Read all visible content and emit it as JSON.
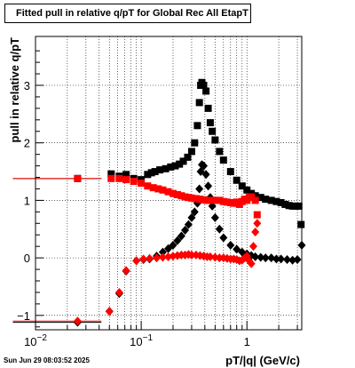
{
  "chart_data": {
    "type": "scatter",
    "title": "Fitted pull in relative q/pT for Global Rec All EtapT",
    "xlabel": "pT/|q| (GeV/c)",
    "ylabel": "pull in relative q/pT",
    "xscale": "log",
    "xlim": [
      0.01,
      3.3
    ],
    "ylim": [
      -1.25,
      3.85
    ],
    "grid": true,
    "x_ticks": [
      {
        "value": 0.01,
        "base": "10",
        "exp": "−2"
      },
      {
        "value": 0.1,
        "base": "10",
        "exp": "−1"
      },
      {
        "value": 1,
        "base": "1",
        "exp": ""
      }
    ],
    "y_ticks": [
      -1,
      0,
      1,
      2,
      3
    ],
    "series": [
      {
        "marker": "square",
        "color": "#000000",
        "points": [
          [
            0.025,
            1.38
          ],
          [
            0.052,
            1.46
          ],
          [
            0.062,
            1.42
          ],
          [
            0.072,
            1.45
          ],
          [
            0.085,
            1.38
          ],
          [
            0.1,
            1.36
          ],
          [
            0.115,
            1.45
          ],
          [
            0.125,
            1.48
          ],
          [
            0.135,
            1.5
          ],
          [
            0.15,
            1.53
          ],
          [
            0.17,
            1.55
          ],
          [
            0.19,
            1.58
          ],
          [
            0.21,
            1.6
          ],
          [
            0.23,
            1.63
          ],
          [
            0.25,
            1.68
          ],
          [
            0.275,
            1.75
          ],
          [
            0.3,
            1.85
          ],
          [
            0.32,
            2.0
          ],
          [
            0.34,
            2.3
          ],
          [
            0.355,
            2.7
          ],
          [
            0.365,
            3.0
          ],
          [
            0.375,
            3.05
          ],
          [
            0.39,
            3.0
          ],
          [
            0.41,
            2.9
          ],
          [
            0.43,
            2.6
          ],
          [
            0.45,
            2.35
          ],
          [
            0.47,
            2.2
          ],
          [
            0.5,
            2.05
          ],
          [
            0.55,
            1.85
          ],
          [
            0.6,
            1.7
          ],
          [
            0.7,
            1.5
          ],
          [
            0.8,
            1.35
          ],
          [
            0.9,
            1.25
          ],
          [
            1.0,
            1.18
          ],
          [
            1.1,
            1.12
          ],
          [
            1.2,
            1.08
          ],
          [
            1.35,
            1.05
          ],
          [
            1.5,
            1.02
          ],
          [
            1.7,
            1.0
          ],
          [
            1.9,
            0.98
          ],
          [
            2.1,
            0.96
          ],
          [
            2.3,
            0.93
          ],
          [
            2.5,
            0.91
          ],
          [
            2.7,
            0.9
          ],
          [
            2.9,
            0.9
          ],
          [
            3.1,
            0.9
          ],
          [
            3.25,
            0.58
          ]
        ]
      },
      {
        "marker": "diamond",
        "color": "#000000",
        "points": [
          [
            0.025,
            -1.12
          ],
          [
            0.05,
            -0.93
          ],
          [
            0.062,
            -0.62
          ],
          [
            0.072,
            -0.23
          ],
          [
            0.09,
            -0.05
          ],
          [
            0.105,
            -0.03
          ],
          [
            0.12,
            -0.02
          ],
          [
            0.14,
            0.03
          ],
          [
            0.16,
            0.1
          ],
          [
            0.18,
            0.16
          ],
          [
            0.2,
            0.22
          ],
          [
            0.22,
            0.3
          ],
          [
            0.24,
            0.38
          ],
          [
            0.26,
            0.48
          ],
          [
            0.28,
            0.58
          ],
          [
            0.3,
            0.7
          ],
          [
            0.32,
            0.8
          ],
          [
            0.34,
            0.95
          ],
          [
            0.355,
            1.2
          ],
          [
            0.365,
            1.5
          ],
          [
            0.375,
            1.62
          ],
          [
            0.39,
            1.6
          ],
          [
            0.41,
            1.45
          ],
          [
            0.43,
            1.25
          ],
          [
            0.45,
            1.05
          ],
          [
            0.47,
            0.9
          ],
          [
            0.5,
            0.7
          ],
          [
            0.55,
            0.5
          ],
          [
            0.6,
            0.35
          ],
          [
            0.7,
            0.22
          ],
          [
            0.8,
            0.15
          ],
          [
            0.9,
            0.1
          ],
          [
            1.0,
            0.07
          ],
          [
            1.1,
            0.04
          ],
          [
            1.2,
            0.02
          ],
          [
            1.35,
            0.01
          ],
          [
            1.5,
            0.0
          ],
          [
            1.7,
            0.0
          ],
          [
            1.9,
            -0.02
          ],
          [
            2.1,
            -0.02
          ],
          [
            2.4,
            -0.03
          ],
          [
            2.7,
            -0.04
          ],
          [
            3.0,
            -0.03
          ],
          [
            3.3,
            0.22
          ]
        ]
      },
      {
        "marker": "square",
        "color": "#ff0000",
        "points": [
          [
            0.025,
            1.38
          ],
          [
            0.052,
            1.38
          ],
          [
            0.062,
            1.38
          ],
          [
            0.072,
            1.36
          ],
          [
            0.085,
            1.33
          ],
          [
            0.1,
            1.3
          ],
          [
            0.115,
            1.25
          ],
          [
            0.13,
            1.22
          ],
          [
            0.145,
            1.2
          ],
          [
            0.16,
            1.18
          ],
          [
            0.18,
            1.15
          ],
          [
            0.2,
            1.12
          ],
          [
            0.22,
            1.1
          ],
          [
            0.24,
            1.08
          ],
          [
            0.26,
            1.06
          ],
          [
            0.28,
            1.05
          ],
          [
            0.3,
            1.04
          ],
          [
            0.33,
            1.03
          ],
          [
            0.36,
            1.02
          ],
          [
            0.39,
            1.01
          ],
          [
            0.42,
            1.0
          ],
          [
            0.45,
            1.0
          ],
          [
            0.5,
            1.0
          ],
          [
            0.55,
            1.0
          ],
          [
            0.6,
            0.98
          ],
          [
            0.65,
            0.97
          ],
          [
            0.7,
            0.96
          ],
          [
            0.75,
            0.95
          ],
          [
            0.8,
            0.97
          ],
          [
            0.85,
            0.93
          ],
          [
            0.9,
            0.98
          ],
          [
            0.95,
            1.02
          ],
          [
            1.0,
            1.0
          ],
          [
            1.05,
            1.05
          ],
          [
            1.1,
            1.06
          ],
          [
            1.2,
            1.0
          ],
          [
            1.25,
            0.75
          ]
        ]
      },
      {
        "marker": "diamond",
        "color": "#ff0000",
        "points": [
          [
            0.025,
            -1.1
          ],
          [
            0.05,
            -0.93
          ],
          [
            0.062,
            -0.6
          ],
          [
            0.072,
            -0.22
          ],
          [
            0.09,
            -0.05
          ],
          [
            0.105,
            -0.02
          ],
          [
            0.12,
            -0.01
          ],
          [
            0.14,
            0.0
          ],
          [
            0.16,
            0.01
          ],
          [
            0.18,
            0.02
          ],
          [
            0.2,
            0.03
          ],
          [
            0.22,
            0.04
          ],
          [
            0.24,
            0.05
          ],
          [
            0.26,
            0.05
          ],
          [
            0.28,
            0.06
          ],
          [
            0.3,
            0.05
          ],
          [
            0.33,
            0.05
          ],
          [
            0.36,
            0.04
          ],
          [
            0.39,
            0.03
          ],
          [
            0.42,
            0.02
          ],
          [
            0.45,
            0.02
          ],
          [
            0.5,
            0.01
          ],
          [
            0.55,
            0.0
          ],
          [
            0.6,
            0.0
          ],
          [
            0.65,
            -0.01
          ],
          [
            0.7,
            -0.02
          ],
          [
            0.75,
            -0.02
          ],
          [
            0.8,
            -0.03
          ],
          [
            0.85,
            -0.05
          ],
          [
            0.9,
            -0.04
          ],
          [
            0.95,
            0.0
          ],
          [
            1.0,
            0.03
          ],
          [
            1.05,
            -0.05
          ],
          [
            1.1,
            -0.1
          ],
          [
            1.15,
            0.2
          ],
          [
            1.2,
            0.45
          ],
          [
            1.25,
            0.6
          ]
        ]
      }
    ]
  },
  "timestamp": "Sun Jun 29 08:03:52 2025"
}
